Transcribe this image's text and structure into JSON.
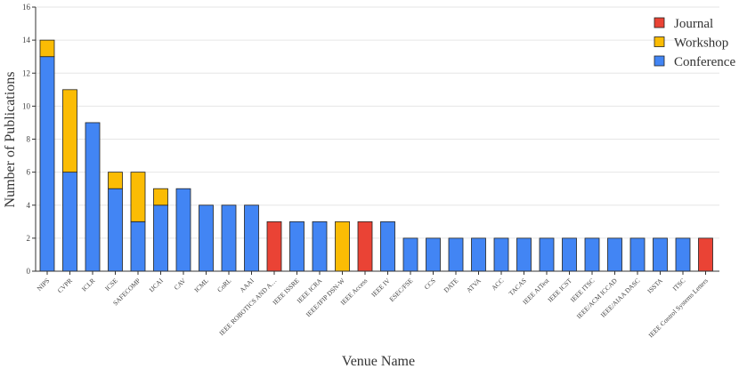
{
  "chart_data": {
    "type": "bar",
    "stacked": true,
    "xlabel": "Venue Name",
    "ylabel": "Number of Publications",
    "ylim": [
      0,
      16
    ],
    "yticks": [
      0,
      2,
      4,
      6,
      8,
      10,
      12,
      14,
      16
    ],
    "grid": "horizontal",
    "legend_position": "top-right",
    "categories": [
      "NIPS",
      "CVPR",
      "ICLR",
      "ICSE",
      "SAFECOMP",
      "IJCAI",
      "CAV",
      "ICML",
      "CoRL",
      "AAAI",
      "IEEE ROBOTICS AND A…",
      "IEEE ISSRE",
      "IEEE ICRA",
      "IEEE/IFIP DSN-W",
      "IEEE Access",
      "IEEE IV",
      "ESEC/FSE",
      "CCS",
      "DATE",
      "ATVA",
      "ACC",
      "TACAS",
      "IEEE AITest",
      "IEEE ICST",
      "IEEE ITSC",
      "IEEE/ACM ICCAD",
      "IEEE/AIAA DASC",
      "ISSTA",
      "ITSC",
      "IEEE Control Systems Letters"
    ],
    "series": [
      {
        "name": "Conference",
        "color": "#4285f4",
        "values": [
          13,
          6,
          9,
          5,
          3,
          4,
          5,
          4,
          4,
          4,
          0,
          3,
          3,
          0,
          0,
          3,
          2,
          2,
          2,
          2,
          2,
          2,
          2,
          2,
          2,
          2,
          2,
          2,
          2,
          0
        ]
      },
      {
        "name": "Workshop",
        "color": "#fbbc04",
        "values": [
          1,
          5,
          0,
          1,
          3,
          1,
          0,
          0,
          0,
          0,
          0,
          0,
          0,
          3,
          0,
          0,
          0,
          0,
          0,
          0,
          0,
          0,
          0,
          0,
          0,
          0,
          0,
          0,
          0,
          0
        ]
      },
      {
        "name": "Journal",
        "color": "#ea4335",
        "values": [
          0,
          0,
          0,
          0,
          0,
          0,
          0,
          0,
          0,
          0,
          3,
          0,
          0,
          0,
          3,
          0,
          0,
          0,
          0,
          0,
          0,
          0,
          0,
          0,
          0,
          0,
          0,
          0,
          0,
          2
        ]
      }
    ],
    "legend_order": [
      "Journal",
      "Workshop",
      "Conference"
    ]
  }
}
